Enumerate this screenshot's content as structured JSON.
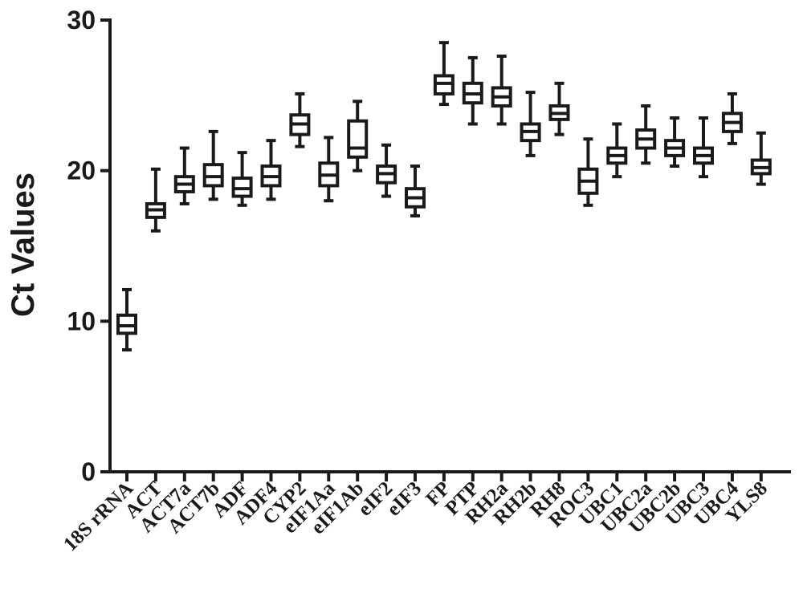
{
  "chart_data": {
    "type": "boxplot",
    "title": "",
    "xlabel": "",
    "ylabel": "Ct Values",
    "ylim": [
      0,
      30
    ],
    "yticks": [
      0,
      10,
      20,
      30
    ],
    "grid": false,
    "legend": "none",
    "color": "#1a1a1a",
    "categories": [
      "18S rRNA",
      "ACT",
      "ACT7a",
      "ACT7b",
      "ADF",
      "ADF4",
      "CYP2",
      "eIF1Aa",
      "eIF1Ab",
      "eIF2",
      "eIF3",
      "FP",
      "PTP",
      "RH2a",
      "RH2b",
      "RH8",
      "ROC3",
      "UBC1",
      "UBC2a",
      "UBC2b",
      "UBC3",
      "UBC4",
      "YLS8"
    ],
    "boxes": [
      {
        "min": 8.1,
        "q1": 9.2,
        "median": 9.7,
        "q3": 10.4,
        "max": 12.1
      },
      {
        "min": 16.0,
        "q1": 16.9,
        "median": 17.4,
        "q3": 17.8,
        "max": 20.1
      },
      {
        "min": 17.8,
        "q1": 18.6,
        "median": 19.1,
        "q3": 19.6,
        "max": 21.5
      },
      {
        "min": 18.1,
        "q1": 19.0,
        "median": 19.6,
        "q3": 20.4,
        "max": 22.6
      },
      {
        "min": 17.7,
        "q1": 18.3,
        "median": 18.8,
        "q3": 19.5,
        "max": 21.2
      },
      {
        "min": 18.1,
        "q1": 19.0,
        "median": 19.6,
        "q3": 20.3,
        "max": 22.0
      },
      {
        "min": 21.6,
        "q1": 22.4,
        "median": 23.1,
        "q3": 23.7,
        "max": 25.1
      },
      {
        "min": 18.0,
        "q1": 19.0,
        "median": 19.7,
        "q3": 20.5,
        "max": 22.2
      },
      {
        "min": 20.0,
        "q1": 20.9,
        "median": 21.5,
        "q3": 23.3,
        "max": 24.6
      },
      {
        "min": 18.3,
        "q1": 19.2,
        "median": 19.8,
        "q3": 20.3,
        "max": 21.7
      },
      {
        "min": 17.0,
        "q1": 17.6,
        "median": 18.2,
        "q3": 18.8,
        "max": 20.3
      },
      {
        "min": 24.4,
        "q1": 25.1,
        "median": 25.8,
        "q3": 26.3,
        "max": 28.5
      },
      {
        "min": 23.1,
        "q1": 24.5,
        "median": 25.1,
        "q3": 25.8,
        "max": 27.5
      },
      {
        "min": 23.1,
        "q1": 24.3,
        "median": 24.9,
        "q3": 25.5,
        "max": 27.6
      },
      {
        "min": 21.0,
        "q1": 22.0,
        "median": 22.6,
        "q3": 23.1,
        "max": 25.2
      },
      {
        "min": 22.4,
        "q1": 23.4,
        "median": 23.8,
        "q3": 24.3,
        "max": 25.8
      },
      {
        "min": 17.7,
        "q1": 18.5,
        "median": 19.3,
        "q3": 20.1,
        "max": 22.1
      },
      {
        "min": 19.6,
        "q1": 20.5,
        "median": 21.0,
        "q3": 21.5,
        "max": 23.1
      },
      {
        "min": 20.5,
        "q1": 21.5,
        "median": 22.1,
        "q3": 22.7,
        "max": 24.3
      },
      {
        "min": 20.3,
        "q1": 21.0,
        "median": 21.5,
        "q3": 22.0,
        "max": 23.5
      },
      {
        "min": 19.6,
        "q1": 20.5,
        "median": 21.0,
        "q3": 21.5,
        "max": 23.5
      },
      {
        "min": 21.8,
        "q1": 22.6,
        "median": 23.2,
        "q3": 23.8,
        "max": 25.1
      },
      {
        "min": 19.1,
        "q1": 19.8,
        "median": 20.2,
        "q3": 20.7,
        "max": 22.5
      }
    ]
  }
}
